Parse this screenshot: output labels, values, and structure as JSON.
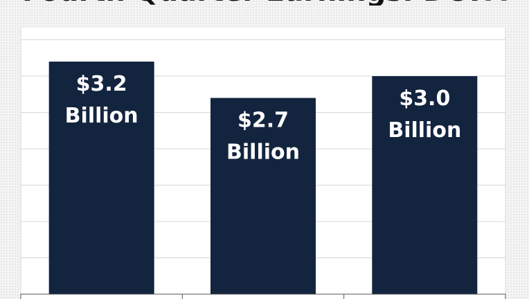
{
  "title": "Fourth Quarter Earnings: DOFA",
  "chart_data": {
    "type": "bar",
    "categories": [
      "",
      "",
      ""
    ],
    "values": [
      3.2,
      2.7,
      3.0
    ],
    "value_labels": [
      [
        "$3.2",
        "Billion"
      ],
      [
        "$2.7",
        "Billion"
      ],
      [
        "$3.0",
        "Billion"
      ]
    ],
    "ylim": [
      0,
      4.0
    ],
    "grid": true,
    "bar_color": "#13243f",
    "grid_color": "#d7d7d7"
  }
}
